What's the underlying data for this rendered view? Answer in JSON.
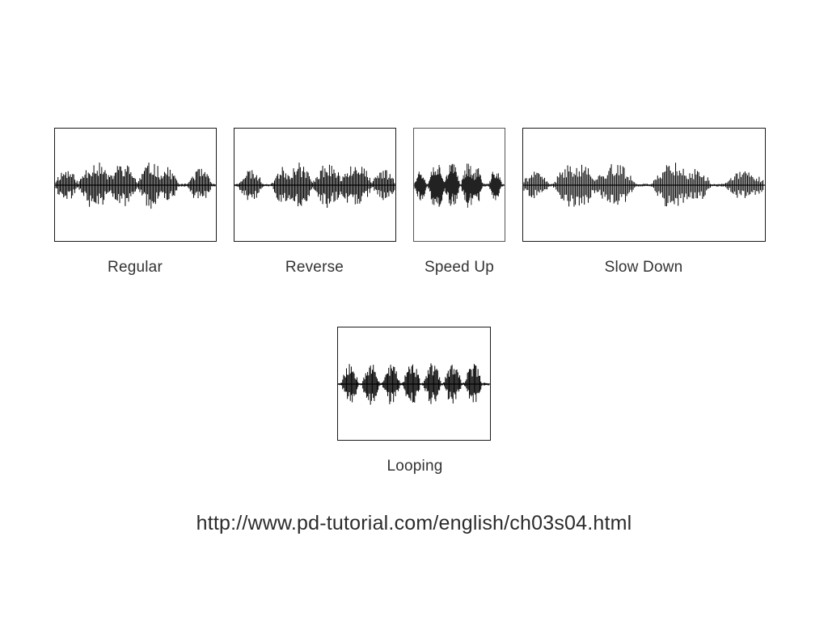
{
  "panels": [
    {
      "id": "regular",
      "label": "Regular"
    },
    {
      "id": "reverse",
      "label": "Reverse"
    },
    {
      "id": "speedup",
      "label": "Speed Up"
    },
    {
      "id": "slowdown",
      "label": "Slow Down"
    },
    {
      "id": "looping",
      "label": "Looping"
    }
  ],
  "source_url": "http://www.pd-tutorial.com/english/ch03s04.html",
  "colors": {
    "waveform": "#000000",
    "waveform_speedup": "#222222",
    "frame": "#1a1a1a",
    "caption": "#333333"
  }
}
